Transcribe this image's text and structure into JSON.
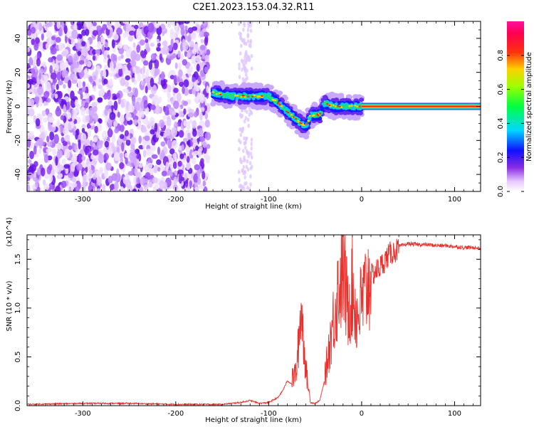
{
  "title": "C2E1.2023.153.04.32.R11",
  "chart_data": [
    {
      "type": "heatmap",
      "xlabel": "Height of straight line (km)",
      "ylabel": "Frequency (Hz)",
      "xlim": [
        -360,
        128
      ],
      "ylim": [
        -50,
        50
      ],
      "x_ticks": [
        -300,
        -200,
        -100,
        0,
        100
      ],
      "x_tick_labels": [
        "-300",
        "-200",
        "-100",
        "0",
        "100"
      ],
      "y_ticks": [
        -40,
        -20,
        0,
        20,
        40
      ],
      "y_tick_labels": [
        "-40",
        "-20",
        "0",
        "20",
        "40"
      ],
      "colorbar": {
        "label": "Normalized spectral amplitude",
        "range": [
          0,
          1
        ],
        "ticks": [
          0.0,
          0.2,
          0.4,
          0.6,
          0.8
        ],
        "tick_labels": [
          "0.0",
          "0.2",
          "0.4",
          "0.6",
          "0.8"
        ],
        "colormap": "rainbow (white-violet-blue-cyan-green-yellow-red-magenta)"
      },
      "features": {
        "noise_region_x": [
          -360,
          -165
        ],
        "gap_region_x": [
          -165,
          -160
        ],
        "echo_track": [
          {
            "x": -160,
            "y": 8
          },
          {
            "x": -140,
            "y": 6
          },
          {
            "x": -120,
            "y": 6
          },
          {
            "x": -100,
            "y": 6
          },
          {
            "x": -90,
            "y": 2
          },
          {
            "x": -80,
            "y": -3
          },
          {
            "x": -70,
            "y": -8
          },
          {
            "x": -60,
            "y": -12
          },
          {
            "x": -55,
            "y": -5
          },
          {
            "x": -45,
            "y": -5
          },
          {
            "x": -40,
            "y": 2
          },
          {
            "x": -30,
            "y": 0
          },
          {
            "x": -10,
            "y": 0
          },
          {
            "x": 0,
            "y": 0
          }
        ],
        "strong_line": {
          "x_start": 0,
          "x_end": 128,
          "y": 0
        }
      }
    },
    {
      "type": "line",
      "xlabel": "Height of straight line (km)",
      "ylabel": "SNR (10 * v/v)",
      "y_scale_label": "(x10^4)",
      "xlim": [
        -360,
        128
      ],
      "ylim": [
        0,
        1.75
      ],
      "x_ticks": [
        -300,
        -200,
        -100,
        0,
        100
      ],
      "x_tick_labels": [
        "-300",
        "-200",
        "-100",
        "0",
        "100"
      ],
      "y_ticks": [
        0.0,
        0.5,
        1.0,
        1.5
      ],
      "y_tick_labels": [
        "0.0",
        "0.5",
        "1.0",
        "1.5"
      ],
      "color": "#e8302c",
      "series": [
        {
          "x": [
            -360,
            -300,
            -250,
            -200,
            -150,
            -130,
            -120,
            -110,
            -100,
            -90,
            -85,
            -80,
            -75,
            -70,
            -65,
            -60,
            -55,
            -50,
            -45,
            -40,
            -35,
            -30,
            -25,
            -20,
            -15,
            -10,
            -5,
            0,
            5,
            10,
            20,
            30,
            40,
            50,
            60,
            70,
            80,
            90,
            100,
            110,
            120,
            128
          ],
          "y": [
            0.01,
            0.02,
            0.02,
            0.01,
            0.01,
            0.03,
            0.05,
            0.02,
            0.03,
            0.08,
            0.15,
            0.25,
            0.22,
            0.3,
            0.85,
            0.3,
            0.03,
            0.02,
            0.05,
            0.25,
            0.6,
            0.9,
            1.2,
            1.4,
            1.0,
            1.2,
            0.9,
            1.05,
            1.2,
            1.35,
            1.45,
            1.58,
            1.63,
            1.66,
            1.65,
            1.65,
            1.64,
            1.64,
            1.63,
            1.62,
            1.62,
            1.61
          ]
        }
      ]
    }
  ]
}
